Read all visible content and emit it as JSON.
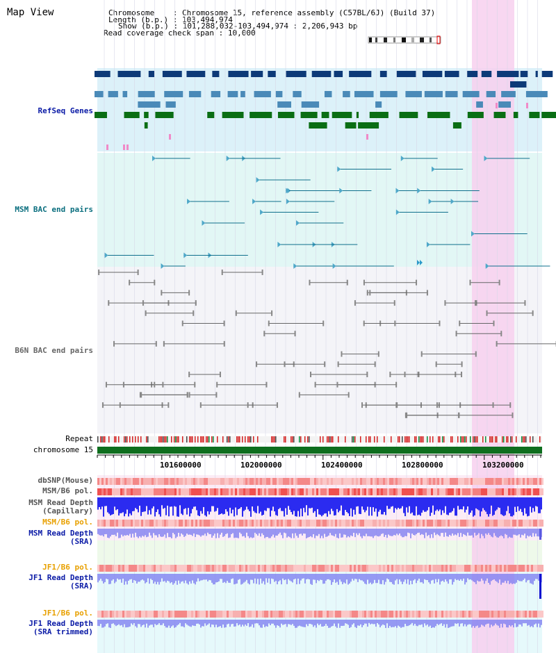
{
  "header": {
    "map_view": "Map View",
    "chromosome_label": "Chromosome",
    "chromosome_value": "Chromosome 15, reference assembly (C57BL/6J) (Build 37)",
    "length_label": "Length (b.p.)",
    "length_value": "103,494,974",
    "show_label": "Show (b.p.)",
    "show_value": "101,288,032-103,494,974 : 2,206,943 bp",
    "span_label": "Read coverage check span",
    "span_value": "10,000"
  },
  "tracks": {
    "refseq": "RefSeq Genes",
    "msm_bac": "MSM BAC end pairs",
    "b6n_bac": "B6N BAC end pairs",
    "repeat": "Repeat",
    "chromosome": "chromosome 15",
    "dbsnp": "dbSNP(Mouse)",
    "msm_b6_pol_1": "MSM/B6 pol.",
    "msm_read_depth_cap_1": "MSM Read Depth",
    "msm_read_depth_cap_2": "(Capillary)",
    "msm_b6_pol_2": "MSM/B6 pol.",
    "msm_read_depth_sra_1": "MSM Read Depth",
    "msm_read_depth_sra_2": "(SRA)",
    "jf1_b6_pol_1": "JF1/B6 pol.",
    "jf1_read_depth_sra_1": "JF1 Read Depth",
    "jf1_read_depth_sra_2": "(SRA)",
    "jf1_b6_pol_2": "JF1/B6 pol.",
    "jf1_read_depth_trim_1": "JF1 Read Depth",
    "jf1_read_depth_trim_2": "(SRA trimmed)"
  },
  "axis": {
    "ticks": [
      "101600000",
      "102000000",
      "102400000",
      "102800000",
      "103200000"
    ]
  },
  "colors": {
    "refseq_navy": "#0d3a78",
    "refseq_steel": "#4a8ab8",
    "refseq_green": "#0a6e14",
    "msm_line": "#0e6f8c",
    "b6n_line": "#666666",
    "highlight": "#f7d0ee",
    "depth_blue": "#2b2bf0",
    "depth_light": "#7a7af0",
    "pol_red": "#f27070",
    "label_blue": "#0a1aa6",
    "label_teal": "#0a6e7e",
    "label_gray": "#666666",
    "label_orange": "#e8a000"
  }
}
